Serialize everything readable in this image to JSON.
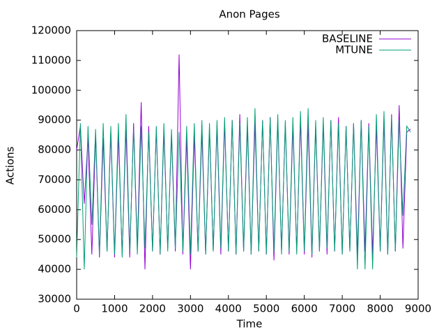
{
  "chart_data": {
    "type": "line",
    "title": "Anon Pages",
    "x_label": "Time",
    "y_label": "Actions",
    "x": [
      0,
      100,
      200,
      300,
      400,
      500,
      600,
      700,
      800,
      900,
      1000,
      1100,
      1200,
      1300,
      1400,
      1500,
      1600,
      1700,
      1800,
      1900,
      2000,
      2100,
      2200,
      2300,
      2400,
      2500,
      2600,
      2700,
      2800,
      2900,
      3000,
      3100,
      3200,
      3300,
      3400,
      3500,
      3600,
      3700,
      3800,
      3900,
      4000,
      4100,
      4200,
      4300,
      4400,
      4500,
      4600,
      4700,
      4800,
      4900,
      5000,
      5100,
      5200,
      5300,
      5400,
      5500,
      5600,
      5700,
      5800,
      5900,
      6000,
      6100,
      6200,
      6300,
      6400,
      6500,
      6600,
      6700,
      6800,
      6900,
      7000,
      7100,
      7200,
      7300,
      7400,
      7500,
      7600,
      7700,
      7800,
      7900,
      8000,
      8100,
      8200,
      8300,
      8400,
      8500,
      8600,
      8700,
      8800
    ],
    "series": [
      {
        "name": "BASELINE",
        "color": "#9400d3",
        "values": [
          80000,
          88000,
          62000,
          84000,
          45000,
          85000,
          44000,
          84000,
          46000,
          86000,
          44000,
          85000,
          45000,
          87000,
          44000,
          89000,
          47000,
          96000,
          40000,
          88000,
          46000,
          87000,
          45000,
          86000,
          47000,
          85000,
          46000,
          112000,
          45000,
          84000,
          40000,
          85000,
          46000,
          86000,
          45000,
          87000,
          46000,
          88000,
          45000,
          89000,
          46000,
          90000,
          45000,
          92000,
          46000,
          88000,
          45000,
          89000,
          46000,
          90000,
          45000,
          91000,
          43000,
          90000,
          46000,
          89000,
          45000,
          88000,
          46000,
          90000,
          45000,
          89000,
          44000,
          88000,
          46000,
          89000,
          45000,
          90000,
          46000,
          91000,
          45000,
          88000,
          46000,
          89000,
          45000,
          90000,
          46000,
          89000,
          45000,
          88000,
          46000,
          90000,
          45000,
          92000,
          46000,
          95000,
          47000,
          86000,
          87000
        ]
      },
      {
        "name": "MTUNE",
        "color": "#009e73",
        "values": [
          44000,
          89000,
          40000,
          88000,
          55000,
          87000,
          45000,
          89000,
          46000,
          88000,
          45000,
          89000,
          44000,
          92000,
          46000,
          87000,
          45000,
          88000,
          47000,
          86000,
          46000,
          88000,
          45000,
          89000,
          46000,
          87000,
          47000,
          86000,
          46000,
          88000,
          45000,
          89000,
          46000,
          90000,
          45000,
          89000,
          46000,
          90000,
          47000,
          91000,
          46000,
          90000,
          45000,
          89000,
          46000,
          91000,
          45000,
          94000,
          46000,
          90000,
          45000,
          91000,
          46000,
          92000,
          45000,
          90000,
          46000,
          91000,
          45000,
          93000,
          46000,
          94000,
          45000,
          90000,
          46000,
          91000,
          47000,
          90000,
          46000,
          89000,
          45000,
          88000,
          46000,
          89000,
          40000,
          90000,
          40000,
          88000,
          40000,
          92000,
          46000,
          93000,
          45000,
          91000,
          46000,
          90000,
          58000,
          88000,
          86000
        ]
      }
    ],
    "xlim": [
      0,
      9000
    ],
    "xticks": [
      0,
      1000,
      2000,
      3000,
      4000,
      5000,
      6000,
      7000,
      8000,
      9000
    ],
    "ylim": [
      30000,
      120000
    ],
    "yticks": [
      30000,
      40000,
      50000,
      60000,
      70000,
      80000,
      90000,
      100000,
      110000,
      120000
    ],
    "grid": false,
    "legend": "top-right"
  }
}
